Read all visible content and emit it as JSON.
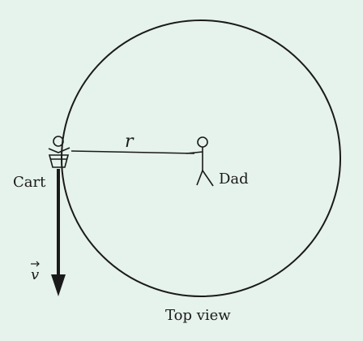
{
  "diagram": {
    "labels": {
      "radius": "r",
      "cart": "Cart",
      "dad": "Dad",
      "velocity": "v",
      "caption": "Top view"
    },
    "colors": {
      "background": "#e6f2ec",
      "ink": "#1a1a1a"
    }
  }
}
